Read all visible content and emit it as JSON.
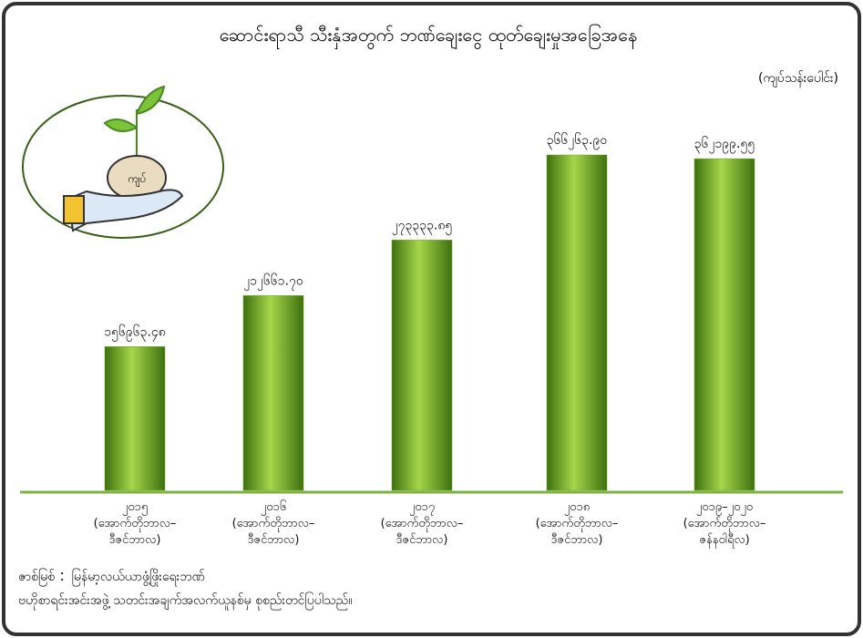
{
  "chart_data": {
    "type": "bar",
    "title": "ဆောင်းရာသီ သီးနှံအတွက် ဘဏ်ချေးငွေ ထုတ်ချေးမှုအခြေအနေ",
    "unit": "(ကျပ်သန်းပေါင်း)",
    "illustration_label": "ကျပ်",
    "categories": [
      "၂၀၁၅\n(အောက်တိုဘာလ–\nဒီဇင်ဘာလ)",
      "၂၀၁၆\n(အောက်တိုဘာလ–\nဒီဇင်ဘာလ)",
      "၂၀၁၇\n(အောက်တိုဘာလ–\nဒီဇင်ဘာလ)",
      "၂၀၁၈\n(အောက်တိုဘာလ–\nဒီဇင်ဘာလ)",
      "၂၀၁၉–၂၀၂၀\n(အောက်တိုဘာလ–\nဇန်နဝါရီလ)"
    ],
    "values": [
      156963.48,
      212661.7,
      273333.85,
      366263.9,
      362199.55
    ],
    "value_labels": [
      "၁၅၆၉၆၃.၄၈",
      "၂၁၂၆၆၁.၇၀",
      "၂၇၃၃၃၃.၈၅",
      "၃၆၆၂၆၃.၉၀",
      "၃၆၂၁၉၉.၅၅"
    ],
    "color": "#6aa81e",
    "source": "ဇာစ်မြစ် ：မြန်မာ့လယ်ယာဖွံ့ဖြိုးရေးဘဏ်\nဗဟိုစာရင်းအင်းအဖွဲ့ သတင်းအချက်အလက်ယူနစ်မှ စုစည်းတင်ပြပါသည်။"
  }
}
